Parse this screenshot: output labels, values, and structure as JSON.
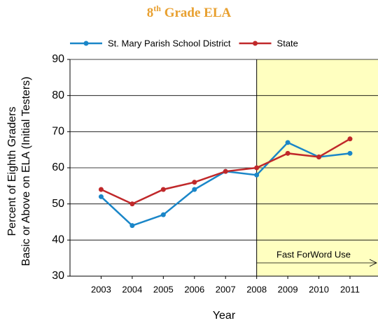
{
  "chart_data": {
    "type": "line",
    "title": "8th Grade ELA",
    "x": [
      2003,
      2004,
      2005,
      2006,
      2007,
      2008,
      2009,
      2010,
      2011
    ],
    "xlim": [
      2002,
      2011.9
    ],
    "xticks": [
      2003,
      2004,
      2005,
      2006,
      2007,
      2008,
      2009,
      2010,
      2011
    ],
    "xlabel": "Year",
    "ylabel": [
      "Percent of Eighth Graders",
      "Basic or Above on ELA (Initial Testers)"
    ],
    "ylim": [
      30,
      90
    ],
    "yticks": [
      30,
      40,
      50,
      60,
      70,
      80,
      90
    ],
    "grid": true,
    "legend": "top",
    "series": [
      {
        "name": "St. Mary Parish School District",
        "color": "#1a86c8",
        "values": [
          52,
          44,
          47,
          54,
          59,
          58,
          67,
          63,
          64
        ]
      },
      {
        "name": "State",
        "color": "#c0282a",
        "values": [
          54,
          50,
          54,
          56,
          59,
          60,
          64,
          63,
          68
        ]
      }
    ],
    "highlight": {
      "start": 2008,
      "color": "#ffffc0",
      "annotation": "Fast ForWord Use"
    }
  }
}
